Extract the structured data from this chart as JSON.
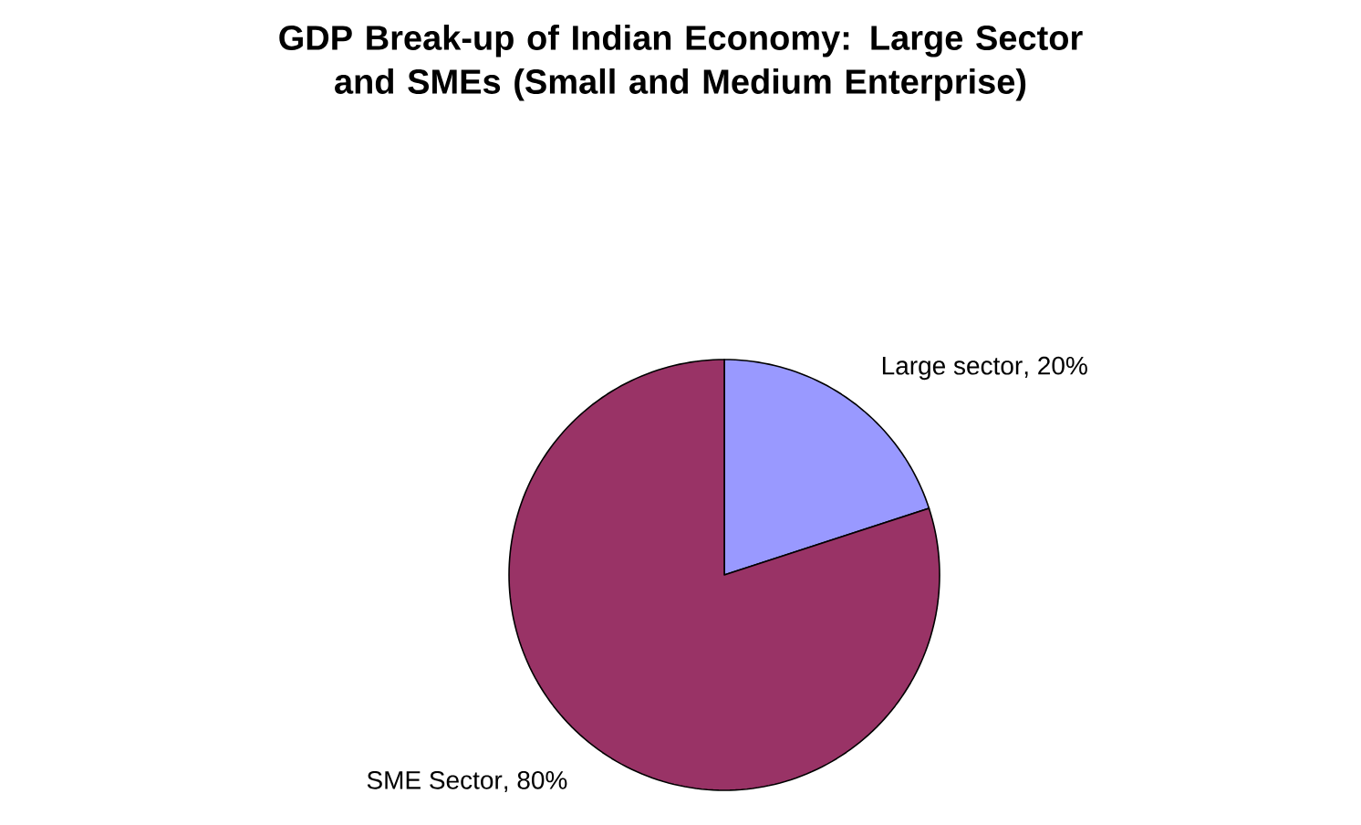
{
  "chart_data": {
    "type": "pie",
    "title": "GDP Break-up of Indian Economy: Large Sector and SMEs (Small and Medium Enterprise)",
    "categories": [
      "Large sector",
      "SME Sector"
    ],
    "values": [
      20,
      80
    ],
    "value_labels": [
      ", 20%",
      ", 80%"
    ],
    "colors": [
      "#9999ff",
      "#993366"
    ]
  }
}
